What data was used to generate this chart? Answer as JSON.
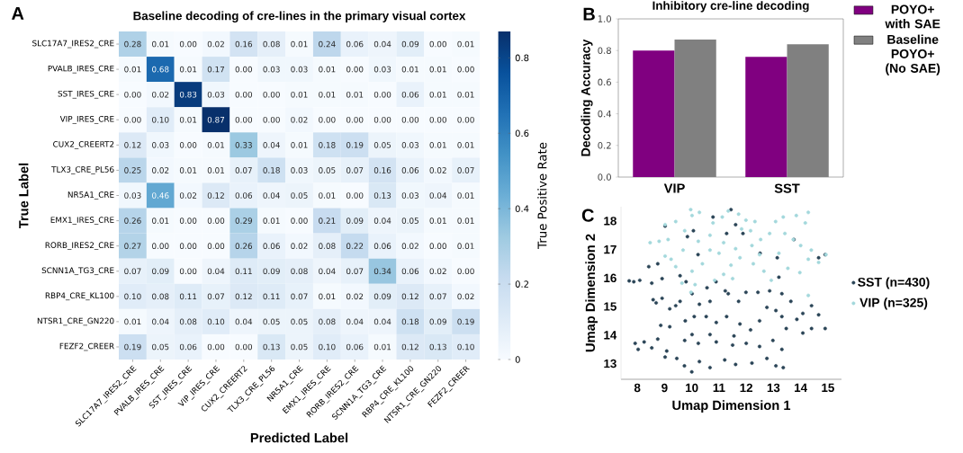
{
  "chart_data": [
    {
      "type": "heatmap",
      "title": "Baseline decoding of cre-lines in the primary visual cortex",
      "xlabel": "Predicted Label",
      "ylabel": "True Label",
      "clabel": "True Positive Rate",
      "annotations": [
        "A"
      ],
      "data_labels": true,
      "categories": [
        "SLC17A7_IRES2_CRE",
        "PVALB_IRES_CRE",
        "SST_IRES_CRE",
        "VIP_IRES_CRE",
        "CUX2_CREERT2",
        "TLX3_CRE_PL56",
        "NR5A1_CRE",
        "EMX1_IRES_CRE",
        "RORB_IRES2_CRE",
        "SCNN1A_TG3_CRE",
        "RBP4_CRE_KL100",
        "NTSR1_CRE_GN220",
        "FEZF2_CREER"
      ],
      "y_categories": [
        "SLC17A7_IRES2_CRE",
        "PVALB_IRES_CRE",
        "SST_IRES_CRE",
        "VIP_IRES_CRE",
        "CUX2_CREERT2",
        "TLX3_CRE_PL56",
        "NR5A1_CRE",
        "EMX1_IRES_CRE",
        "RORB_IRES2_CRE",
        "SCNN1A_TG3_CRE",
        "RBP4_CRE_KL100",
        "NTSR1_CRE_GN220",
        "FEZF2_CREER"
      ],
      "cells": [
        [
          0.28,
          0.01,
          0.0,
          0.02,
          0.16,
          0.08,
          0.01,
          0.24,
          0.06,
          0.04,
          0.09,
          0.0,
          0.01
        ],
        [
          0.01,
          0.68,
          0.01,
          0.17,
          0.0,
          0.03,
          0.03,
          0.01,
          0.0,
          0.03,
          0.01,
          0.01,
          0.0
        ],
        [
          0.0,
          0.02,
          0.83,
          0.03,
          0.0,
          0.0,
          0.01,
          0.01,
          0.01,
          0.0,
          0.06,
          0.01,
          0.01
        ],
        [
          0.0,
          0.1,
          0.01,
          0.87,
          0.0,
          0.0,
          0.02,
          0.0,
          0.0,
          0.0,
          0.0,
          0.0,
          0.0
        ],
        [
          0.12,
          0.03,
          0.0,
          0.01,
          0.33,
          0.04,
          0.01,
          0.18,
          0.19,
          0.05,
          0.03,
          0.01,
          0.01
        ],
        [
          0.25,
          0.02,
          0.01,
          0.01,
          0.07,
          0.18,
          0.03,
          0.05,
          0.07,
          0.16,
          0.06,
          0.02,
          0.07
        ],
        [
          0.03,
          0.46,
          0.02,
          0.12,
          0.06,
          0.04,
          0.05,
          0.01,
          0.0,
          0.13,
          0.03,
          0.04,
          0.01
        ],
        [
          0.26,
          0.01,
          0.0,
          0.0,
          0.29,
          0.01,
          0.0,
          0.21,
          0.09,
          0.04,
          0.05,
          0.01,
          0.01
        ],
        [
          0.27,
          0.0,
          0.0,
          0.0,
          0.26,
          0.06,
          0.02,
          0.08,
          0.22,
          0.06,
          0.02,
          0.0,
          0.01
        ],
        [
          0.07,
          0.09,
          0.0,
          0.04,
          0.11,
          0.09,
          0.08,
          0.04,
          0.07,
          0.34,
          0.06,
          0.02,
          0.0
        ],
        [
          0.1,
          0.08,
          0.11,
          0.07,
          0.12,
          0.11,
          0.07,
          0.01,
          0.02,
          0.09,
          0.12,
          0.07,
          0.02
        ],
        [
          0.01,
          0.04,
          0.08,
          0.1,
          0.04,
          0.05,
          0.05,
          0.08,
          0.04,
          0.04,
          0.18,
          0.09,
          0.19
        ],
        [
          0.19,
          0.05,
          0.06,
          0.0,
          0.0,
          0.13,
          0.05,
          0.1,
          0.06,
          0.01,
          0.12,
          0.13,
          0.1
        ]
      ],
      "cell_labels": [
        [
          "0.28",
          "0.01",
          "0.00",
          "0.02",
          "0.16",
          "0.08",
          "0.01",
          "0.24",
          "0.06",
          "0.04",
          "0.09",
          "0.00",
          "0.01"
        ],
        [
          "0.01",
          "0.68",
          "0.01",
          "0.17",
          "0.00",
          "0.03",
          "0.03",
          "0.01",
          "0.00",
          "0.03",
          "0.01",
          "0.01",
          "0.00"
        ],
        [
          "0.00",
          "0.02",
          "0.83",
          "0.03",
          "0.00",
          "0.00",
          "0.01",
          "0.01",
          "0.01",
          "0.00",
          "0.06",
          "0.01",
          "0.01"
        ],
        [
          "0.00",
          "0.10",
          "0.01",
          "0.87",
          "0.00",
          "0.00",
          "0.02",
          "0.00",
          "0.00",
          "0.00",
          "0.00",
          "0.00",
          "0.00"
        ],
        [
          "0.12",
          "0.03",
          "0.00",
          "0.01",
          "0.33",
          "0.04",
          "0.01",
          "0.18",
          "0.19",
          "0.05",
          "0.03",
          "0.01",
          "0.01"
        ],
        [
          "0.25",
          "0.02",
          "0.01",
          "0.01",
          "0.07",
          "0.18",
          "0.03",
          "0.05",
          "0.07",
          "0.16",
          "0.06",
          "0.02",
          "0.07"
        ],
        [
          "0.03",
          "0.46",
          "0.02",
          "0.12",
          "0.06",
          "0.04",
          "0.05",
          "0.01",
          "0.00",
          "0.13",
          "0.03",
          "0.04",
          "0.01"
        ],
        [
          "0.26",
          "0.01",
          "0.00",
          "0.00",
          "0.29",
          "0.01",
          "0.00",
          "0.21",
          "0.09",
          "0.04",
          "0.05",
          "0.01",
          "0.01"
        ],
        [
          "0.27",
          "0.00",
          "0.00",
          "0.00",
          "0.26",
          "0.06",
          "0.02",
          "0.08",
          "0.22",
          "0.06",
          "0.02",
          "0.00",
          "0.01"
        ],
        [
          "0.07",
          "0.09",
          "0.00",
          "0.04",
          "0.11",
          "0.09",
          "0.08",
          "0.04",
          "0.07",
          "0.34",
          "0.06",
          "0.02",
          "0.00"
        ],
        [
          "0.10",
          "0.08",
          "0.11",
          "0.07",
          "0.12",
          "0.11",
          "0.07",
          "0.01",
          "0.02",
          "0.09",
          "0.12",
          "0.07",
          "0.02"
        ],
        [
          "0.01",
          "0.04",
          "0.08",
          "0.10",
          "0.04",
          "0.05",
          "0.05",
          "0.08",
          "0.04",
          "0.04",
          "0.18",
          "0.09",
          "0.19"
        ],
        [
          "0.19",
          "0.05",
          "0.06",
          "0.00",
          "0.00",
          "0.13",
          "0.05",
          "0.10",
          "0.06",
          "0.01",
          "0.12",
          "0.13",
          "0.10"
        ]
      ],
      "clim": [
        0,
        0.87
      ],
      "cticks": [
        0,
        0.2,
        0.4,
        0.6,
        0.8
      ]
    },
    {
      "type": "bar",
      "title": "Inhibitory cre-line decoding",
      "ylabel": "Decoding Accuracy",
      "annotations": [
        "B"
      ],
      "legend": "top right",
      "categories": [
        "VIP",
        "SST"
      ],
      "series": [
        {
          "name": "POYO+ with SAE",
          "color": "#800080",
          "values": [
            0.8,
            0.76
          ]
        },
        {
          "name": "Baseline POYO+ (No SAE)",
          "color": "#808080",
          "values": [
            0.87,
            0.84
          ]
        }
      ],
      "ylim": [
        0,
        1
      ],
      "yticks": [
        {
          "value": 0,
          "label": "0.0"
        },
        {
          "value": 0.2,
          "label": "0.2"
        },
        {
          "value": 0.4,
          "label": "0.4"
        },
        {
          "value": 0.6,
          "label": "0.6"
        },
        {
          "value": 0.8,
          "label": "0.8"
        },
        {
          "value": 1,
          "label": "1.0"
        }
      ]
    },
    {
      "type": "scatter",
      "xlabel": "Umap Dimension 1",
      "ylabel": "Umap Dimension 2",
      "annotations": [
        "C"
      ],
      "legend": "right",
      "xlim": [
        7.4,
        15.5
      ],
      "ylim": [
        12.45,
        18.5
      ],
      "xticks": [
        8,
        9,
        10,
        11,
        12,
        13,
        14,
        15
      ],
      "yticks": [
        13,
        14,
        15,
        16,
        17,
        18
      ],
      "series": [
        {
          "name": "SST (n=430)",
          "color": "#2a4456",
          "x": [
            11.44,
            10.78,
            10.06,
            9.02,
            9.84,
            11.28,
            11.61,
            11.88,
            10.23,
            8.75,
            8.42,
            7.7,
            7.87,
            8.09,
            8.53,
            8.91,
            9.57,
            9.79,
            8.58,
            8.69,
            8.91,
            9.19,
            9.41,
            9.57,
            10.01,
            10.28,
            10.67,
            10.89,
            10.56,
            11.23,
            11.34,
            11.72,
            11.99,
            12.43,
            12.86,
            13.2,
            13.31,
            13.64,
            13.14,
            12.51,
            13.75,
            14.66,
            14.9,
            14.4,
            14.66,
            14.08,
            13.86,
            14.08,
            14.4,
            14.9,
            13.31,
            13.47,
            13.09,
            12.76,
            12.49,
            12.16,
            11.77,
            11.55,
            11.28,
            10.9,
            10.53,
            10.09,
            9.76,
            9.19,
            8.86,
            8.75,
            7.92,
            8.03,
            8.25,
            8.53,
            9.08,
            9.02,
            9.45,
            9.73,
            10.0,
            10.28,
            10.67,
            11.21,
            11.61,
            12.21,
            12.76,
            13.09,
            13.36,
            13.31,
            12.98,
            12.49,
            12.0,
            11.5,
            10.9,
            10.24,
            9.74,
            10.01,
            10.67
          ],
          "values": [
            18.4,
            18.14,
            17.66,
            17.82,
            17.45,
            17.56,
            17.87,
            17.56,
            16.82,
            16.5,
            16.4,
            15.9,
            15.87,
            15.92,
            15.82,
            15.98,
            16.08,
            15.87,
            15.24,
            15.13,
            15.29,
            14.92,
            15.03,
            15.18,
            15.45,
            15.08,
            15.18,
            15.87,
            15.66,
            15.55,
            15.45,
            15.18,
            15.5,
            15.5,
            15.55,
            16.03,
            15.45,
            15.18,
            16.71,
            16.87,
            17.35,
            16.71,
            16.82,
            15.03,
            14.71,
            14.76,
            14.55,
            14.07,
            14.23,
            14.23,
            14.65,
            14.23,
            14.86,
            14.97,
            14.5,
            14.18,
            14.39,
            13.97,
            14.65,
            14.44,
            14.65,
            14.65,
            14.5,
            14.29,
            14.34,
            13.86,
            13.71,
            13.5,
            13.76,
            13.55,
            13.44,
            13.23,
            13.18,
            12.92,
            12.71,
            13.07,
            12.86,
            13.13,
            12.97,
            13.02,
            13.18,
            12.92,
            12.86,
            13.5,
            13.81,
            13.6,
            13.71,
            13.65,
            13.76,
            13.71,
            13.81,
            14.02,
            14.02
          ]
        },
        {
          "name": "VIP (n=325)",
          "color": "#a3d8dc",
          "x": [
            9.96,
            8.47,
            8.8,
            9.13,
            9.02,
            9.41,
            10.01,
            10.28,
            9.74,
            10.24,
            9.68,
            9.24,
            9.41,
            10.01,
            9.64,
            9.97,
            10.67,
            10.67,
            11.0,
            11.17,
            10.78,
            11.12,
            11.34,
            11.72,
            11.99,
            12.32,
            11.83,
            12.16,
            11.61,
            11.77,
            11.44,
            11.17,
            10.84,
            12.26,
            12.21,
            12.53,
            12.86,
            13.08,
            13.36,
            13.84,
            14.28,
            14.17,
            13.73,
            13.42,
            13.2,
            13.53,
            13.97,
            14.28,
            14.66,
            14.93,
            14.39,
            14.0,
            12.65,
            12.92,
            14.28,
            12.49,
            10.39,
            10.12,
            11.5,
            9.02
          ],
          "values": [
            18.4,
            17.24,
            17.29,
            17.35,
            17.87,
            17.98,
            18.19,
            18.3,
            17.66,
            17.29,
            16.98,
            16.66,
            16.4,
            16.24,
            15.82,
            15.5,
            17.5,
            16.98,
            16.87,
            17.24,
            17.93,
            18.14,
            18.35,
            18.24,
            18.03,
            17.98,
            17.72,
            17.66,
            17.03,
            16.71,
            16.45,
            16.13,
            15.92,
            16.5,
            17.14,
            17.35,
            17.56,
            17.98,
            18.14,
            18.19,
            18.3,
            17.93,
            17.35,
            17.56,
            16.87,
            16.34,
            16.19,
            16.66,
            16.55,
            16.82,
            16.98,
            17.14,
            16.24,
            15.92,
            15.39,
            16.82,
            16.5,
            15.77,
            15.98,
            16.77
          ]
        }
      ]
    }
  ]
}
